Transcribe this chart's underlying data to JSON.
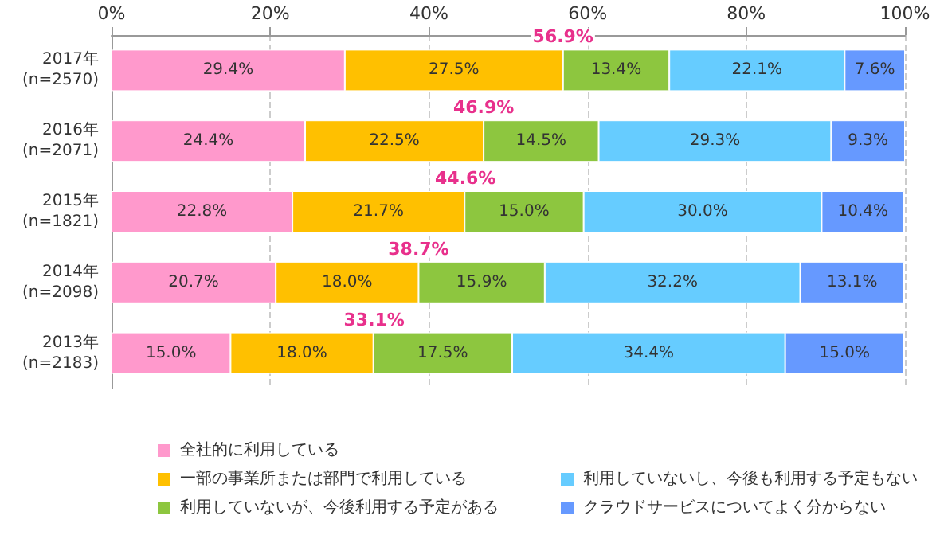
{
  "chart_data": {
    "type": "bar",
    "orientation": "horizontal",
    "stacked": true,
    "categories": [
      "2017年\n(n=2570)",
      "2016年\n(n=2071)",
      "2015年\n(n=1821)",
      "2014年\n(n=2098)",
      "2013年\n(n=2183)"
    ],
    "series": [
      {
        "name": "全社的に利用している",
        "color": "#ff99cc",
        "values": [
          29.4,
          24.4,
          22.8,
          20.7,
          15.0
        ],
        "value_labels": [
          "29.4%",
          "24.4%",
          "22.8%",
          "20.7%",
          "15.0%"
        ]
      },
      {
        "name": "一部の事業所または部門で利用している",
        "color": "#ffc000",
        "values": [
          27.5,
          22.5,
          21.7,
          18.0,
          18.0
        ],
        "value_labels": [
          "27.5%",
          "22.5%",
          "21.7%",
          "18.0%",
          "18.0%"
        ]
      },
      {
        "name": "利用していないが、今後利用する予定がある",
        "color": "#8dc63f",
        "values": [
          13.4,
          14.5,
          15.0,
          15.9,
          17.5
        ],
        "value_labels": [
          "13.4%",
          "14.5%",
          "15.0%",
          "15.9%",
          "17.5%"
        ]
      },
      {
        "name": "利用していないし、今後も利用する予定もない",
        "color": "#66ccff",
        "values": [
          22.1,
          29.3,
          30.0,
          32.2,
          34.4
        ],
        "value_labels": [
          "22.1%",
          "29.3%",
          "30.0%",
          "32.2%",
          "34.4%"
        ]
      },
      {
        "name": "クラウドサービスについてよく分からない",
        "color": "#6699ff",
        "values": [
          7.6,
          9.3,
          10.4,
          13.1,
          15.0
        ],
        "value_labels": [
          "7.6%",
          "9.3%",
          "10.4%",
          "13.1%",
          "15.0%"
        ]
      }
    ],
    "xlim": [
      0,
      100
    ],
    "xticks": [
      {
        "value": 0,
        "label": "0%"
      },
      {
        "value": 20,
        "label": "20%"
      },
      {
        "value": 40,
        "label": "40%"
      },
      {
        "value": 60,
        "label": "60%"
      },
      {
        "value": 80,
        "label": "80%"
      },
      {
        "value": 100,
        "label": "100%"
      }
    ],
    "grid": "x",
    "legend": "bottom",
    "annotations": [
      {
        "text": "56.9%",
        "x": 56.9,
        "y": "2017年\n(n=2570)"
      },
      {
        "text": "46.9%",
        "x": 46.9,
        "y": "2016年\n(n=2071)"
      },
      {
        "text": "44.6%",
        "x": 44.6,
        "y": "2015年\n(n=1821)"
      },
      {
        "text": "38.7%",
        "x": 38.7,
        "y": "2014年\n(n=2098)"
      },
      {
        "text": "33.1%",
        "x": 33.1,
        "y": "2013年\n(n=2183)"
      }
    ]
  }
}
